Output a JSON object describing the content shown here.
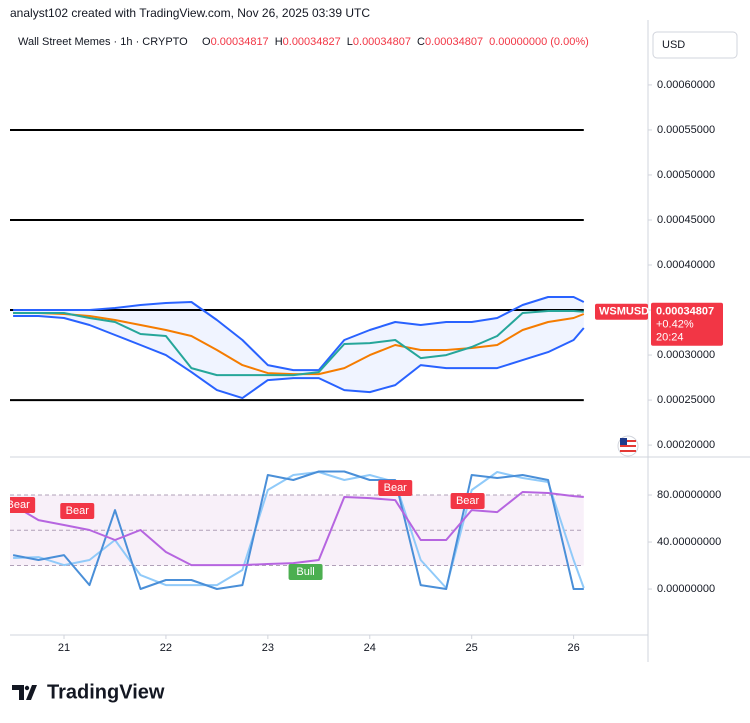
{
  "header": {
    "credit": "analyst102 created with TradingView.com, Nov 26, 2025 03:39 UTC",
    "symbol": "Wall Street Memes · 1h · CRYPTO",
    "ohlc": [
      {
        "label": "O",
        "value": "0.00034817"
      },
      {
        "label": "H",
        "value": "0.00034827"
      },
      {
        "label": "L",
        "value": "0.00034807"
      },
      {
        "label": "C",
        "value": "0.00034807"
      }
    ],
    "change": "0.00000000 (0.00%)",
    "currency": "USD"
  },
  "price_label": {
    "symbol": "WSMUSD",
    "price": "0.00034807",
    "change": "+0.42%",
    "countdown": "20:24"
  },
  "footer": {
    "brand": "TradingView"
  },
  "chart_data": [
    {
      "type": "line",
      "x": [
        20.5,
        20.75,
        21,
        21.25,
        21.5,
        21.75,
        22,
        22.25,
        22.5,
        22.75,
        23,
        23.25,
        23.5,
        23.75,
        24,
        24.25,
        24.5,
        24.75,
        25,
        25.25,
        25.5,
        25.75,
        26,
        26.1
      ],
      "xlim": [
        20.47,
        26.73
      ],
      "ylim": [
        0.000189,
        0.000661
      ],
      "yticks": [
        {
          "value": 0.0002,
          "label": "0.00020000"
        },
        {
          "value": 0.00025,
          "label": "0.00025000"
        },
        {
          "value": 0.0003,
          "label": "0.00030000"
        },
        {
          "value": 0.00035,
          "label": "0.00035000"
        },
        {
          "value": 0.0004,
          "label": "0.00040000"
        },
        {
          "value": 0.00045,
          "label": "0.00045000"
        },
        {
          "value": 0.0005,
          "label": "0.00050000"
        },
        {
          "value": 0.00055,
          "label": "0.00055000"
        },
        {
          "value": 0.0006,
          "label": "0.00060000"
        }
      ],
      "levels": [
        0.00055,
        0.00045,
        0.00035,
        0.00025
      ],
      "level_color": "#000000",
      "band_fill": "rgba(41,98,255,0.07)",
      "series": [
        {
          "color": "#2962ff",
          "values": [
            0.00035,
            0.00035,
            0.00035,
            0.00035,
            0.00035222,
            0.00035556,
            0.00035778,
            0.00035889,
            0.00033889,
            0.00031667,
            0.00028889,
            0.00028333,
            0.00028333,
            0.00031667,
            0.00032778,
            0.00033667,
            0.00033333,
            0.00033667,
            0.00033667,
            0.00034111,
            0.00035556,
            0.00036444,
            0.00036444,
            0.00035889
          ]
        },
        {
          "color": "#2962ff",
          "values": [
            0.00034333,
            0.00034333,
            0.00034111,
            0.00033333,
            0.00032222,
            0.00031111,
            0.0003,
            0.00028111,
            0.00026111,
            0.00025222,
            0.00027222,
            0.00027444,
            0.00027444,
            0.00026111,
            0.00025889,
            0.00026667,
            0.00028889,
            0.00028556,
            0.00028556,
            0.00028556,
            0.00029444,
            0.00030333,
            0.00031667,
            0.00033
          ]
        },
        {
          "color": "#f57c00",
          "values": [
            0.00034667,
            0.00034667,
            0.00034556,
            0.00034333,
            0.00033889,
            0.00033333,
            0.00032778,
            0.00032111,
            0.00030556,
            0.00028889,
            0.00028,
            0.00027889,
            0.00027889,
            0.00028556,
            0.0003,
            0.00031111,
            0.00030556,
            0.00030556,
            0.00030778,
            0.00031111,
            0.00032778,
            0.00033667,
            0.00034111,
            0.00034556
          ]
        },
        {
          "color": "#26a69a",
          "values": [
            0.00034667,
            0.00034667,
            0.00034667,
            0.00034111,
            0.00033667,
            0.00032333,
            0.00032111,
            0.00028556,
            0.00027778,
            0.00027778,
            0.00027778,
            0.00027778,
            0.00028111,
            0.00031222,
            0.00031333,
            0.00031667,
            0.00029667,
            0.0003,
            0.00030889,
            0.00032111,
            0.00034667,
            0.00034889,
            0.00034889,
            0.00034807
          ]
        }
      ]
    },
    {
      "type": "line",
      "x": [
        20.5,
        20.75,
        21,
        21.25,
        21.5,
        21.75,
        22,
        22.25,
        22.5,
        22.75,
        23,
        23.25,
        23.5,
        23.75,
        24,
        24.25,
        24.5,
        24.75,
        25,
        25.25,
        25.5,
        25.75,
        26,
        26.1
      ],
      "xlim": [
        20.47,
        26.73
      ],
      "xticks": [
        21,
        22,
        23,
        24,
        25,
        26
      ],
      "ylim": [
        -39.1,
        109.8
      ],
      "yticks": [
        {
          "value": 0,
          "label": "0.00000000"
        },
        {
          "value": 40,
          "label": "40.00000000"
        },
        {
          "value": 80,
          "label": "80.00000000"
        }
      ],
      "band": [
        20,
        80
      ],
      "band_fill": "rgba(156,39,176,0.07)",
      "levels": [
        20,
        50,
        80
      ],
      "level_color": "#b0a0b8",
      "series": [
        {
          "color": "#90caf9",
          "values": [
            26.4,
            27.2,
            20.4,
            24.7,
            41.7,
            11.9,
            3.4,
            3.4,
            3.4,
            16.2,
            84.3,
            97,
            99.6,
            92.8,
            97,
            91.1,
            24.7,
            0.9,
            84.3,
            99.6,
            94.5,
            91.1,
            24.7,
            0.9
          ]
        },
        {
          "color": "#4a8fd8",
          "values": [
            28.9,
            24.7,
            28.9,
            3.4,
            67.2,
            0,
            7.7,
            7.7,
            0,
            3.4,
            97,
            92.8,
            100,
            100,
            92.8,
            92.8,
            3.4,
            0,
            97,
            94.5,
            97,
            92.8,
            0,
            0
          ]
        },
        {
          "color": "#b665e0",
          "values": [
            71.5,
            58.7,
            54.5,
            50.2,
            41.7,
            50.2,
            31.5,
            20.4,
            20.4,
            20.4,
            21.3,
            22.1,
            24.7,
            78.3,
            77.4,
            75.7,
            41.7,
            41.7,
            67.2,
            65.5,
            82.6,
            81.7,
            79.1,
            78.3
          ]
        }
      ],
      "annotations": [
        {
          "text": "Bear",
          "x": 20.55,
          "y": 71.5,
          "color": "#f23645"
        },
        {
          "text": "Bear",
          "x": 21.13,
          "y": 66.4,
          "color": "#f23645"
        },
        {
          "text": "Bull",
          "x": 23.37,
          "y": 14.5,
          "color": "#4caf50"
        },
        {
          "text": "Bear",
          "x": 24.25,
          "y": 86,
          "color": "#f23645"
        },
        {
          "text": "Bear",
          "x": 24.96,
          "y": 74.9,
          "color": "#f23645"
        }
      ]
    }
  ]
}
